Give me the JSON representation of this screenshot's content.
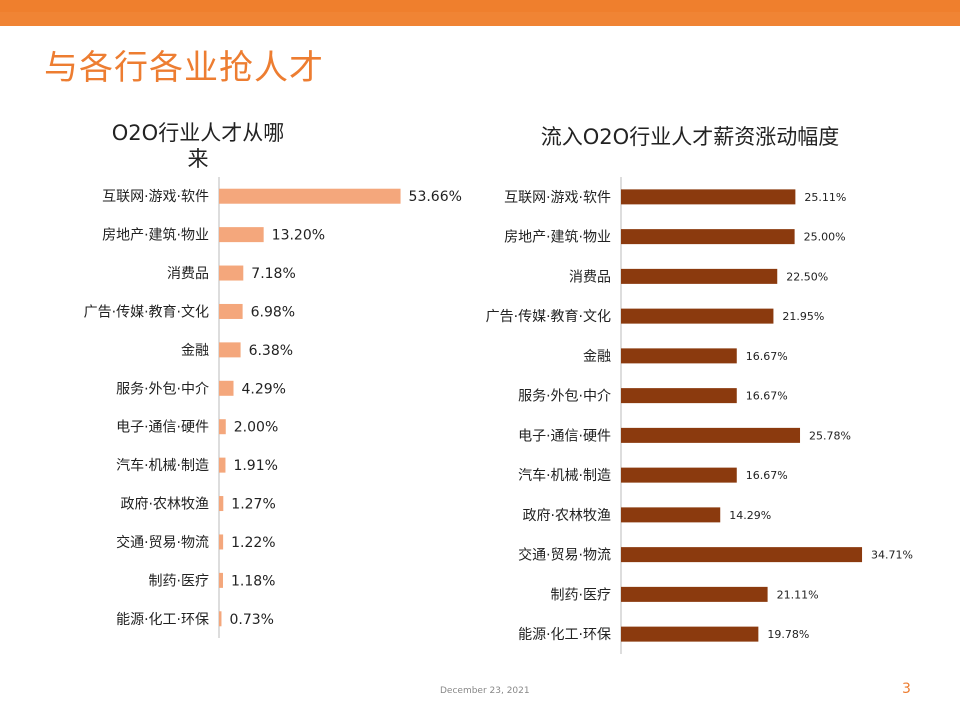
{
  "slide": {
    "title": "与各行各业抢人才",
    "date": "December 23, 2021",
    "page_number": "3"
  },
  "colors": {
    "accent": "#ed7d31",
    "left_bar": "#f4a77c",
    "right_bar": "#8b3a0e"
  },
  "chart_data": [
    {
      "type": "bar",
      "orientation": "horizontal",
      "title": "O2O行业人才从哪来",
      "title_lines": [
        "O2O行业人才从哪",
        "来"
      ],
      "categories": [
        "互联网·游戏·软件",
        "房地产·建筑·物业",
        "消费品",
        "广告·传媒·教育·文化",
        "金融",
        "服务·外包·中介",
        "电子·通信·硬件",
        "汽车·机械·制造",
        "政府·农林牧渔",
        "交通·贸易·物流",
        "制药·医疗",
        "能源·化工·环保"
      ],
      "values": [
        53.66,
        13.2,
        7.18,
        6.98,
        6.38,
        4.29,
        2.0,
        1.91,
        1.27,
        1.22,
        1.18,
        0.73
      ],
      "labels": [
        "53.66%",
        "13.20%",
        "7.18%",
        "6.98%",
        "6.38%",
        "4.29%",
        "2.00%",
        "1.91%",
        "1.27%",
        "1.22%",
        "1.18%",
        "0.73%"
      ],
      "xlim": [
        0,
        60
      ]
    },
    {
      "type": "bar",
      "orientation": "horizontal",
      "title": "流入O2O行业人才薪资涨动幅度",
      "categories": [
        "互联网·游戏·软件",
        "房地产·建筑·物业",
        "消费品",
        "广告·传媒·教育·文化",
        "金融",
        "服务·外包·中介",
        "电子·通信·硬件",
        "汽车·机械·制造",
        "政府·农林牧渔",
        "交通·贸易·物流",
        "制药·医疗",
        "能源·化工·环保"
      ],
      "values": [
        25.11,
        25.0,
        22.5,
        21.95,
        16.67,
        16.67,
        25.78,
        16.67,
        14.29,
        34.71,
        21.11,
        19.78
      ],
      "labels": [
        "25.11%",
        "25.00%",
        "22.50%",
        "21.95%",
        "16.67%",
        "16.67%",
        "25.78%",
        "16.67%",
        "14.29%",
        "34.71%",
        "21.11%",
        "19.78%"
      ],
      "xlim": [
        0,
        36
      ]
    }
  ]
}
